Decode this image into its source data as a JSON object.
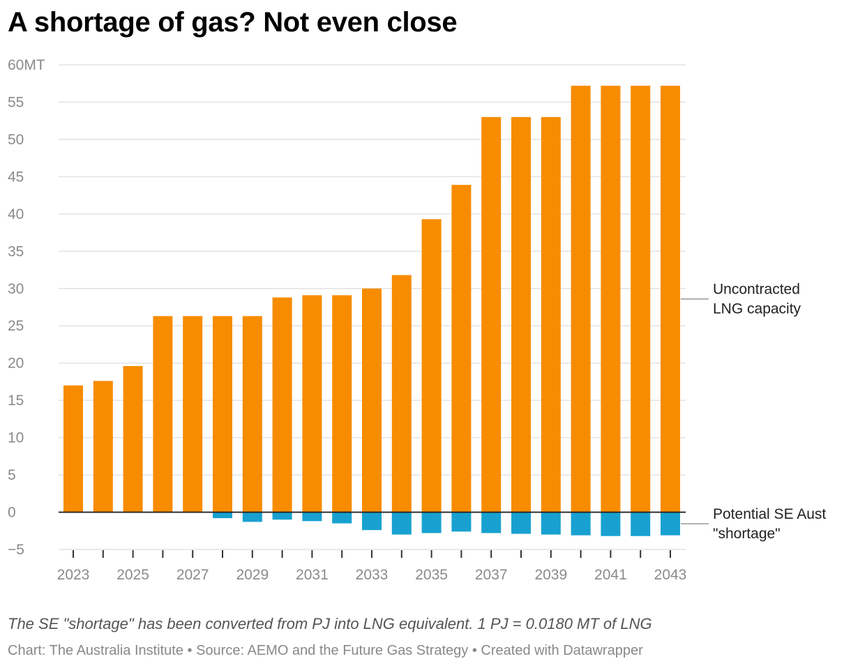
{
  "title": "A shortage of gas? Not even close",
  "note": "The SE \"shortage\" has been converted from PJ into LNG equivalent. 1 PJ = 0.0180 MT of LNG",
  "credit": "Chart: The Australia Institute  • Source: AEMO and the Future Gas Strategy • Created with Datawrapper",
  "colors": {
    "capacity": "#f78c00",
    "shortage": "#18a1d0"
  },
  "chart_data": {
    "type": "bar",
    "categories": [
      "2023",
      "2024",
      "2025",
      "2026",
      "2027",
      "2028",
      "2029",
      "2030",
      "2031",
      "2032",
      "2033",
      "2034",
      "2035",
      "2036",
      "2037",
      "2038",
      "2039",
      "2040",
      "2041",
      "2042",
      "2043"
    ],
    "series": [
      {
        "name": "Uncontracted LNG capacity",
        "values": [
          17.0,
          17.6,
          19.6,
          26.3,
          26.3,
          26.3,
          26.3,
          28.8,
          29.1,
          29.1,
          30.0,
          31.8,
          39.3,
          43.9,
          53.0,
          53.0,
          53.0,
          57.2,
          57.2,
          57.2,
          57.2
        ]
      },
      {
        "name": "Potential SE Aust \"shortage\"",
        "values": [
          0,
          0,
          0,
          0,
          0,
          -0.8,
          -1.3,
          -1.0,
          -1.2,
          -1.5,
          -2.4,
          -3.0,
          -2.8,
          -2.6,
          -2.8,
          -2.9,
          -3.0,
          -3.1,
          -3.2,
          -3.2,
          -3.1
        ]
      }
    ],
    "ylim": [
      -5,
      60
    ],
    "yticks": [
      -5,
      0,
      5,
      10,
      15,
      20,
      25,
      30,
      35,
      40,
      45,
      50,
      55,
      60
    ],
    "ytick_labels": [
      "−5",
      "0",
      "5",
      "10",
      "15",
      "20",
      "25",
      "30",
      "35",
      "40",
      "45",
      "50",
      "55",
      "60MT"
    ],
    "xtick_labels": [
      "2023",
      "2025",
      "2027",
      "2029",
      "2031",
      "2033",
      "2035",
      "2037",
      "2039",
      "2041",
      "2043"
    ],
    "series_labels": [
      {
        "series": 0,
        "lines": [
          "Uncontracted",
          "LNG capacity"
        ]
      },
      {
        "series": 1,
        "lines": [
          "Potential SE Aust",
          "\"shortage\""
        ]
      }
    ],
    "grid": true,
    "legend": "direct labels right"
  }
}
